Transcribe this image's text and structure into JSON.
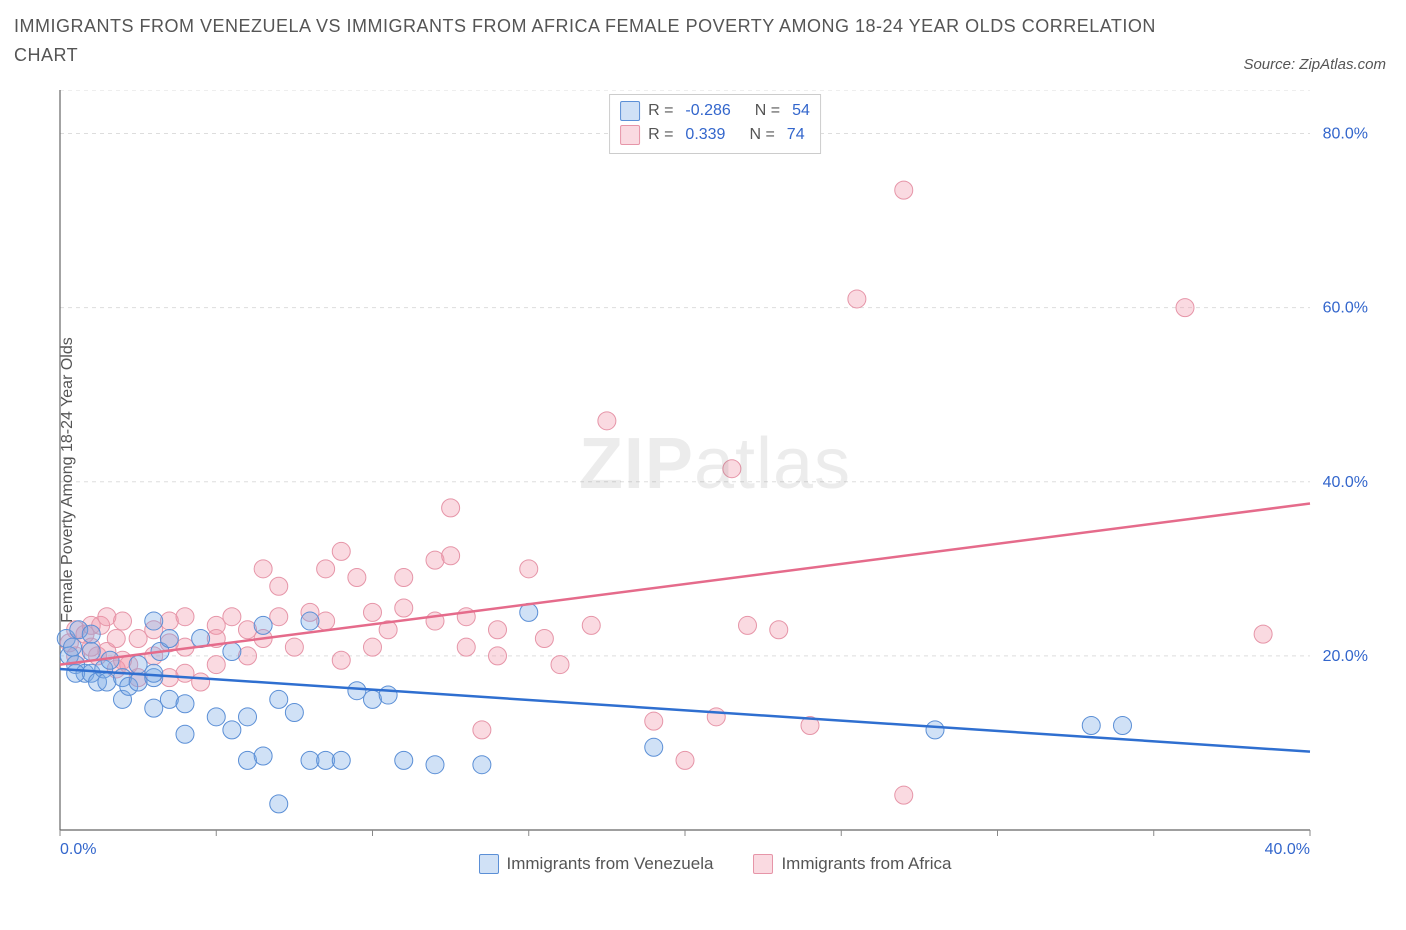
{
  "title": "IMMIGRANTS FROM VENEZUELA VS IMMIGRANTS FROM AFRICA FEMALE POVERTY AMONG 18-24 YEAR OLDS CORRELATION CHART",
  "source": "Source: ZipAtlas.com",
  "ylabel": "Female Poverty Among 18-24 Year Olds",
  "watermark_bold": "ZIP",
  "watermark_light": "atlas",
  "chart": {
    "type": "scatter",
    "background_color": "#ffffff",
    "grid_color": "#dddddd",
    "axis_color": "#666666",
    "tick_color": "#888888",
    "xlim": [
      0,
      40
    ],
    "ylim": [
      0,
      85
    ],
    "x_ticks": [
      0,
      5,
      10,
      15,
      20,
      25,
      30,
      35,
      40
    ],
    "x_tick_labels": {
      "0": "0.0%",
      "40": "40.0%"
    },
    "x_tick_label_color": "#3366cc",
    "y_ticks": [
      20,
      40,
      60,
      80
    ],
    "y_tick_labels": {
      "20": "20.0%",
      "40": "40.0%",
      "60": "60.0%",
      "80": "80.0%"
    },
    "y_tick_label_color": "#3366cc",
    "y_gridlines": [
      20,
      40,
      60,
      80,
      85
    ],
    "marker_radius": 9,
    "marker_stroke_width": 1,
    "trend_width": 2.5,
    "tick_fontsize": 16
  },
  "series": [
    {
      "key": "venezuela",
      "label": "Immigrants from Venezuela",
      "fill": "rgba(120,170,230,0.35)",
      "stroke": "#5b8fd6",
      "line_color": "#2f6fd0",
      "R": "-0.286",
      "N": "54",
      "trend": {
        "x1": 0,
        "y1": 18.5,
        "x2": 40,
        "y2": 9.0
      },
      "points": [
        [
          0.2,
          22
        ],
        [
          0.3,
          20
        ],
        [
          0.4,
          21
        ],
        [
          0.5,
          19
        ],
        [
          0.6,
          23
        ],
        [
          0.8,
          18
        ],
        [
          1.0,
          20.5
        ],
        [
          1.0,
          22.5
        ],
        [
          0.5,
          18.0
        ],
        [
          1.0,
          18.0
        ],
        [
          1.2,
          17.0
        ],
        [
          1.4,
          18.5
        ],
        [
          1.6,
          19.5
        ],
        [
          1.5,
          17.0
        ],
        [
          2.0,
          17.5
        ],
        [
          2.0,
          15.0
        ],
        [
          2.2,
          16.5
        ],
        [
          2.5,
          19.0
        ],
        [
          2.5,
          17.0
        ],
        [
          3.0,
          24.0
        ],
        [
          3.0,
          17.5
        ],
        [
          3.0,
          18.0
        ],
        [
          3.0,
          14.0
        ],
        [
          3.2,
          20.5
        ],
        [
          3.5,
          15.0
        ],
        [
          3.5,
          22.0
        ],
        [
          4.0,
          11.0
        ],
        [
          4.0,
          14.5
        ],
        [
          4.5,
          22.0
        ],
        [
          5.0,
          13.0
        ],
        [
          5.5,
          20.5
        ],
        [
          5.5,
          11.5
        ],
        [
          6.0,
          8.0
        ],
        [
          6.0,
          13.0
        ],
        [
          6.5,
          23.5
        ],
        [
          6.5,
          8.5
        ],
        [
          7.0,
          3.0
        ],
        [
          7.0,
          15.0
        ],
        [
          7.5,
          13.5
        ],
        [
          8.0,
          8.0
        ],
        [
          8.0,
          24.0
        ],
        [
          8.5,
          8.0
        ],
        [
          9.0,
          8.0
        ],
        [
          9.5,
          16.0
        ],
        [
          10.0,
          15.0
        ],
        [
          10.5,
          15.5
        ],
        [
          11.0,
          8.0
        ],
        [
          12.0,
          7.5
        ],
        [
          13.5,
          7.5
        ],
        [
          15.0,
          25.0
        ],
        [
          19.0,
          9.5
        ],
        [
          28.0,
          11.5
        ],
        [
          33.0,
          12.0
        ],
        [
          34.0,
          12.0
        ]
      ]
    },
    {
      "key": "africa",
      "label": "Immigrants from Africa",
      "fill": "rgba(240,150,170,0.35)",
      "stroke": "#e695a8",
      "line_color": "#e56b8b",
      "R": "0.339",
      "N": "74",
      "trend": {
        "x1": 0,
        "y1": 19.0,
        "x2": 40,
        "y2": 37.5
      },
      "points": [
        [
          0.3,
          21.5
        ],
        [
          0.5,
          23.0
        ],
        [
          0.5,
          20.0
        ],
        [
          0.8,
          22.5
        ],
        [
          1.0,
          23.5
        ],
        [
          1.0,
          21.0
        ],
        [
          1.2,
          20.0
        ],
        [
          1.3,
          23.5
        ],
        [
          1.5,
          24.5
        ],
        [
          1.5,
          20.5
        ],
        [
          1.8,
          22.0
        ],
        [
          1.8,
          18.5
        ],
        [
          2.0,
          19.5
        ],
        [
          2.0,
          24.0
        ],
        [
          2.2,
          19.0
        ],
        [
          2.5,
          22.0
        ],
        [
          2.5,
          17.5
        ],
        [
          3.0,
          20.0
        ],
        [
          3.0,
          23.0
        ],
        [
          3.5,
          24.0
        ],
        [
          3.5,
          21.5
        ],
        [
          3.5,
          17.5
        ],
        [
          4.0,
          24.5
        ],
        [
          4.0,
          21.0
        ],
        [
          4.0,
          18.0
        ],
        [
          4.5,
          17.0
        ],
        [
          5.0,
          23.5
        ],
        [
          5.0,
          22.0
        ],
        [
          5.0,
          19.0
        ],
        [
          5.5,
          24.5
        ],
        [
          6.0,
          20.0
        ],
        [
          6.0,
          23.0
        ],
        [
          6.5,
          30.0
        ],
        [
          6.5,
          22.0
        ],
        [
          7.0,
          24.5
        ],
        [
          7.0,
          28.0
        ],
        [
          7.5,
          21.0
        ],
        [
          8.0,
          25.0
        ],
        [
          8.5,
          24.0
        ],
        [
          8.5,
          30.0
        ],
        [
          9.0,
          32.0
        ],
        [
          9.0,
          19.5
        ],
        [
          9.5,
          29.0
        ],
        [
          10.0,
          25.0
        ],
        [
          10.0,
          21.0
        ],
        [
          10.5,
          23.0
        ],
        [
          11.0,
          29.0
        ],
        [
          11.0,
          25.5
        ],
        [
          12.0,
          24.0
        ],
        [
          12.0,
          31.0
        ],
        [
          12.5,
          37.0
        ],
        [
          12.5,
          31.5
        ],
        [
          13.0,
          21.0
        ],
        [
          13.0,
          24.5
        ],
        [
          13.5,
          11.5
        ],
        [
          14.0,
          23.0
        ],
        [
          14.0,
          20.0
        ],
        [
          15.0,
          30.0
        ],
        [
          15.5,
          22.0
        ],
        [
          16.0,
          19.0
        ],
        [
          17.0,
          23.5
        ],
        [
          17.5,
          47.0
        ],
        [
          19.0,
          12.5
        ],
        [
          20.0,
          8.0
        ],
        [
          21.0,
          13.0
        ],
        [
          21.5,
          41.5
        ],
        [
          22.0,
          23.5
        ],
        [
          23.0,
          23.0
        ],
        [
          24.0,
          12.0
        ],
        [
          25.5,
          61.0
        ],
        [
          27.0,
          73.5
        ],
        [
          27.0,
          4.0
        ],
        [
          36.0,
          60.0
        ],
        [
          38.5,
          22.5
        ]
      ]
    }
  ],
  "legend_top": {
    "r_label": "R =",
    "n_label": "N ="
  }
}
